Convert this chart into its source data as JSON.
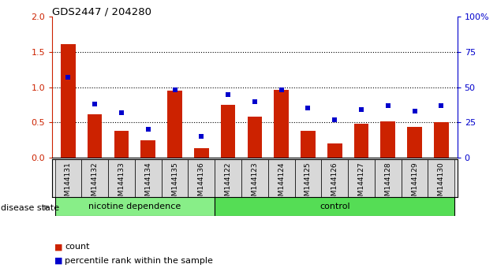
{
  "title": "GDS2447 / 204280",
  "categories": [
    "GSM144131",
    "GSM144132",
    "GSM144133",
    "GSM144134",
    "GSM144135",
    "GSM144136",
    "GSM144122",
    "GSM144123",
    "GSM144124",
    "GSM144125",
    "GSM144126",
    "GSM144127",
    "GSM144128",
    "GSM144129",
    "GSM144130"
  ],
  "count_values": [
    1.61,
    0.62,
    0.38,
    0.25,
    0.95,
    0.13,
    0.75,
    0.58,
    0.96,
    0.38,
    0.2,
    0.48,
    0.51,
    0.44,
    0.5
  ],
  "percentile_values": [
    57,
    38,
    32,
    20,
    48,
    15,
    45,
    40,
    48,
    35,
    27,
    34,
    37,
    33,
    37
  ],
  "group1_label": "nicotine dependence",
  "group2_label": "control",
  "group1_count": 6,
  "group2_count": 9,
  "bar_color": "#cc2200",
  "dot_color": "#0000cc",
  "group1_bg": "#88ee88",
  "group2_bg": "#55dd55",
  "ylim_left": [
    0,
    2
  ],
  "ylim_right": [
    0,
    100
  ],
  "yticks_left": [
    0,
    0.5,
    1.0,
    1.5,
    2.0
  ],
  "yticks_right": [
    0,
    25,
    50,
    75,
    100
  ],
  "disease_state_label": "disease state",
  "legend_count_label": "count",
  "legend_pct_label": "percentile rank within the sample",
  "grid_yticks": [
    0.5,
    1.0,
    1.5
  ],
  "bar_width": 0.55
}
